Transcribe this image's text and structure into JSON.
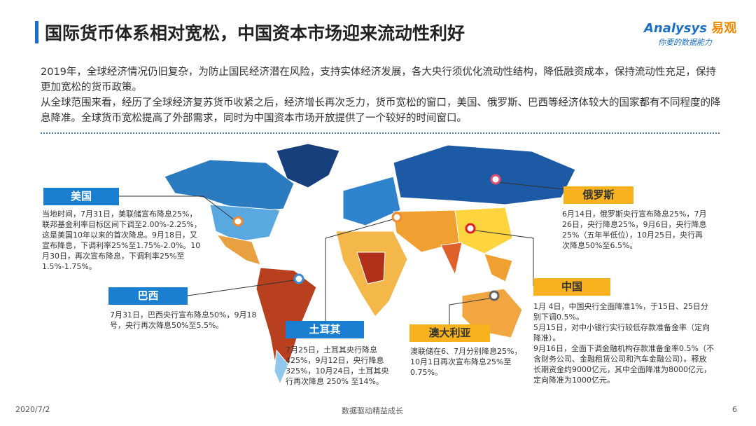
{
  "header": {
    "title": "国际货币体系相对宽松，中国资本市场迎来流动性利好",
    "logo": {
      "brand": "Analysys",
      "name": "易观",
      "slogan": "你要的数据能力"
    }
  },
  "intro": [
    "2019年，全球经济情况仍旧复杂，为防止国民经济潜在风险，支持实体经济发展，各大央行须优化流动性结构，降低融资成本，保持流动性充足，保持更加宽松的货币政策。",
    "从全球范围来看，经历了全球经济复苏货币收紧之后，经济增长再次乏力，货币宽松的窗口，美国、俄罗斯、巴西等经济体较大的国家都有不同程度的降息降准。全球货币宽松提高了外部需求，同时为中国资本市场开放提供了一个较好的时间窗口。"
  ],
  "regions": [
    {
      "name": "美国",
      "text": [
        "当地时间，7月31日，美联储宣布降息25%，联邦基金利率目标区间下调至2.00%-2.25%，这是美国10年以来的首次降息。9月18日，又宣布降息，下调利率25%至1.75%-2.0%。10月30日，再次宣布降息，下调利率25%至1.5%-1.75%。"
      ]
    },
    {
      "name": "巴西",
      "text": [
        "7月31日，巴西央行宣布降息50%，9月18号，央行再次降息50%至5.5%。"
      ]
    },
    {
      "name": "土耳其",
      "text": [
        "7月25日，土耳其央行降息425%，9月12日，央行降息325%，10月24日，土耳其央行再次降息 250% 至14%。"
      ]
    },
    {
      "name": "澳大利亚",
      "text": [
        "澳联储在6、7月分别降息25%，10月1日再次宣布降息25%至0.75%。"
      ]
    },
    {
      "name": "俄罗斯",
      "text": [
        "6月14日，俄罗斯央行宣布降息25%，7月26日，央行降息25%，9月6日，央行降息25%（五年半低位），10月25日，央行再次降息50%至6.5%。"
      ]
    },
    {
      "name": "中国",
      "text": [
        "1月 4日，中国央行全面降准1%，于15日、25日分别下调0.5%。",
        "5月15日，对中小银行实行较低存款准备金率（定向降准）。",
        "9月16日，全面下调金融机构存款准备金率0.5%（不含财务公司、金融租赁公司和汽车金融公司）。释放长期资金约9000亿元，其中全面降准为8000亿元，定向降准为1000亿元。"
      ]
    }
  ],
  "footer": {
    "date": "2020/7/2",
    "slogan": "数据驱动精益成长",
    "page": "6"
  }
}
